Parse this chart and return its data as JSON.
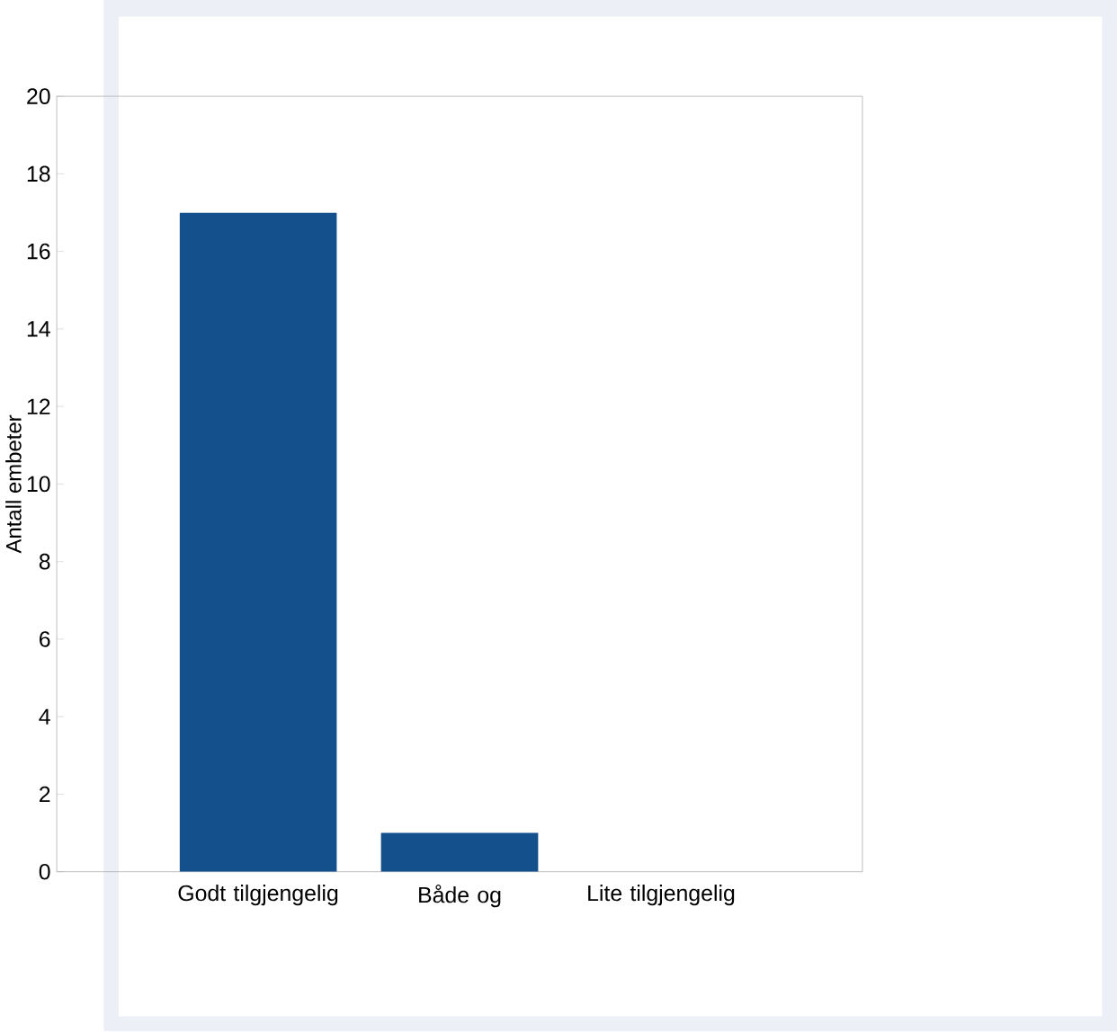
{
  "chart_data": {
    "type": "bar",
    "ylabel": "Antall embeter",
    "categories": [
      "Godt tilgjengelig",
      "Både og",
      "Lite tilgjengelig"
    ],
    "values": [
      17,
      1,
      0
    ],
    "color": "#14508c",
    "ylim": [
      0,
      20
    ],
    "yticks": [
      0,
      2,
      4,
      6,
      8,
      10,
      12,
      14,
      16,
      18,
      20
    ],
    "grid": false
  }
}
